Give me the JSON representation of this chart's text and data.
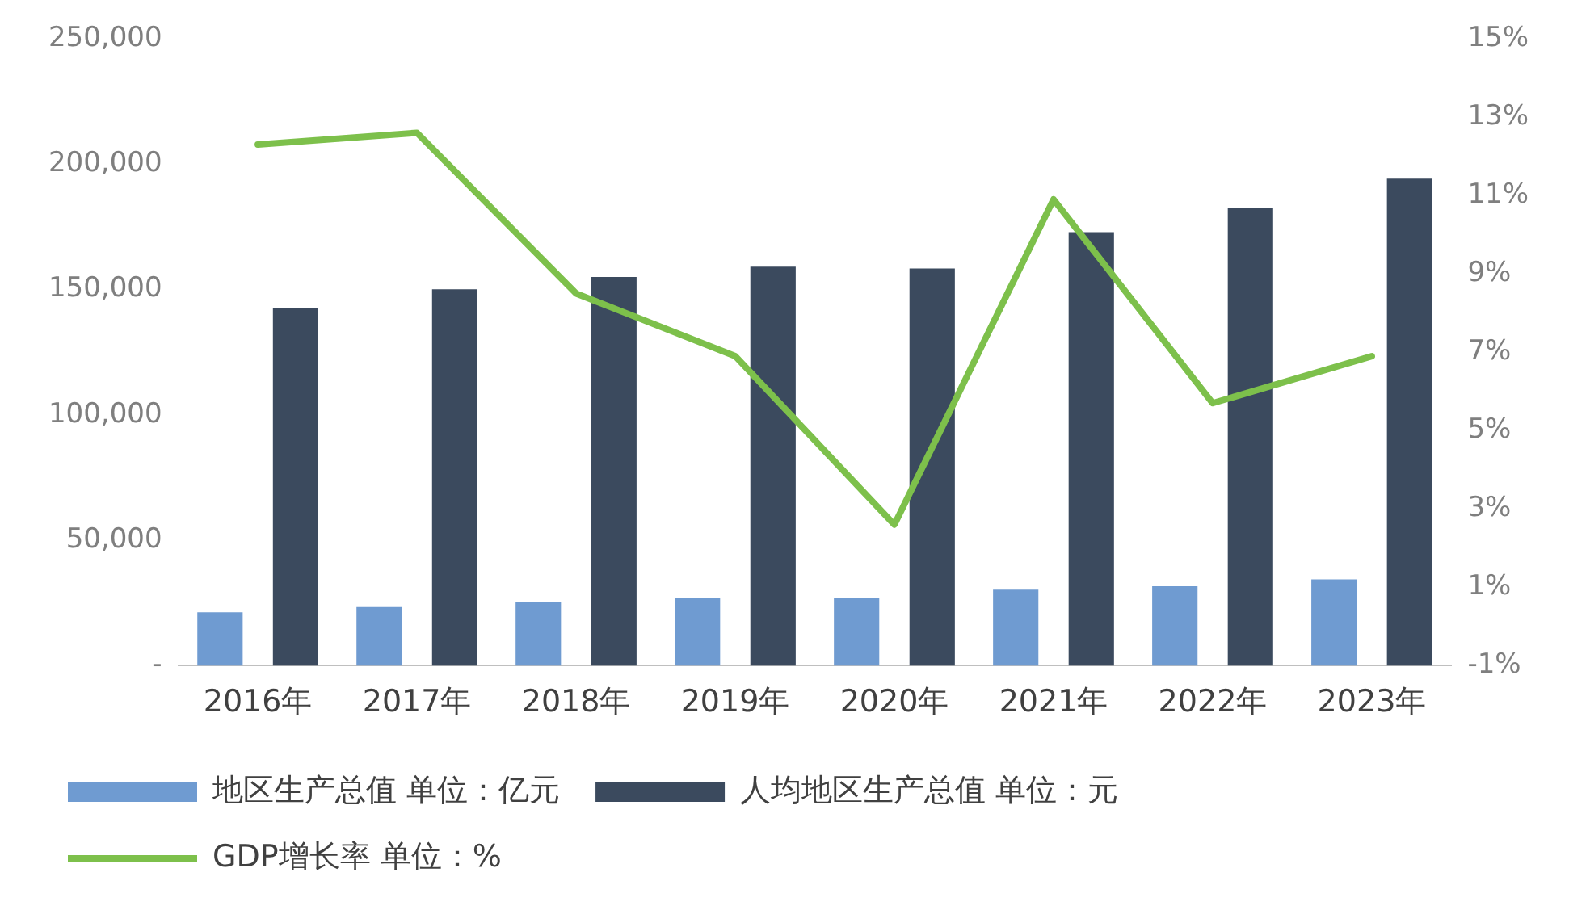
{
  "chart_data": {
    "type": "bar",
    "categories": [
      "2016年",
      "2017年",
      "2018年",
      "2019年",
      "2020年",
      "2021年",
      "2022年",
      "2023年"
    ],
    "series": [
      {
        "name": "地区生产总值 单位：亿元",
        "color": "#6f9bd1",
        "values": [
          21300,
          23400,
          25500,
          26900,
          26900,
          30300,
          31700,
          34400
        ]
      },
      {
        "name": "人均地区生产总值 单位：元",
        "color": "#3b4a5e",
        "values": [
          142600,
          150100,
          155000,
          159100,
          158400,
          172900,
          182500,
          194200
        ]
      },
      {
        "name": "GDP增长率 单位：%",
        "type": "line",
        "axis": "y2",
        "color": "#7dc04b",
        "values": [
          12.3,
          12.6,
          8.5,
          6.9,
          2.6,
          10.9,
          5.7,
          6.9
        ]
      }
    ],
    "ylim": [
      0,
      250000
    ],
    "yticks": [
      {
        "value": 0,
        "label": "-"
      },
      {
        "value": 50000,
        "label": "50,000"
      },
      {
        "value": 100000,
        "label": "100,000"
      },
      {
        "value": 150000,
        "label": "150,000"
      },
      {
        "value": 200000,
        "label": "200,000"
      },
      {
        "value": 250000,
        "label": "250,000"
      }
    ],
    "y2lim": [
      -1,
      15
    ],
    "y2ticks": [
      {
        "value": -1,
        "label": "-1%"
      },
      {
        "value": 1,
        "label": "1%"
      },
      {
        "value": 3,
        "label": "3%"
      },
      {
        "value": 5,
        "label": "5%"
      },
      {
        "value": 7,
        "label": "7%"
      },
      {
        "value": 9,
        "label": "9%"
      },
      {
        "value": 11,
        "label": "11%"
      },
      {
        "value": 13,
        "label": "13%"
      },
      {
        "value": 15,
        "label": "15%"
      }
    ],
    "grid": false,
    "legend": "bottom",
    "marker": "none",
    "line_style": "solid"
  }
}
